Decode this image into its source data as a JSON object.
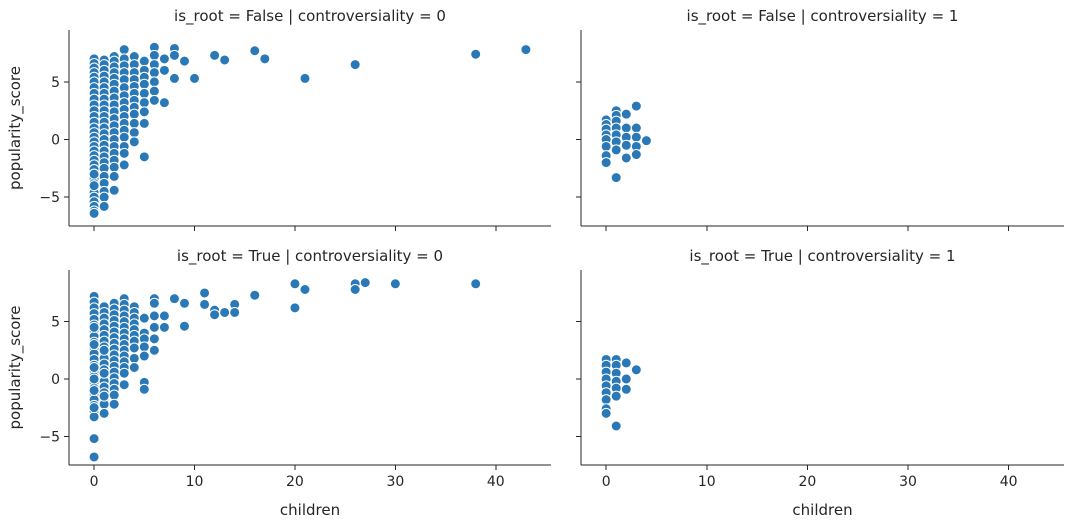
{
  "colors": {
    "point": "#2a78b5",
    "axis": "#262626"
  },
  "chart_data": [
    {
      "type": "scatter",
      "title": "is_root = False | controversiality = 0",
      "xlabel": "",
      "ylabel": "popularity_score",
      "xlim": [
        -2.5,
        45.5
      ],
      "ylim": [
        -7.5,
        9.5
      ],
      "xticks": [
        0,
        10,
        20,
        30,
        40
      ],
      "yticks": [
        -5,
        0,
        5
      ],
      "x": [
        0,
        0,
        0,
        0,
        0,
        0,
        0,
        0,
        0,
        0,
        0,
        0,
        0,
        0,
        0,
        0,
        0,
        0,
        0,
        0,
        0,
        0,
        0,
        0,
        0,
        0,
        0,
        0,
        0,
        0,
        0,
        0,
        0,
        0,
        0,
        1,
        1,
        1,
        1,
        1,
        1,
        1,
        1,
        1,
        1,
        1,
        1,
        1,
        1,
        1,
        1,
        1,
        1,
        1,
        1,
        1,
        1,
        1,
        1,
        1,
        2,
        2,
        2,
        2,
        2,
        2,
        2,
        2,
        2,
        2,
        2,
        2,
        2,
        2,
        2,
        2,
        2,
        2,
        2,
        2,
        3,
        3,
        3,
        3,
        3,
        3,
        3,
        3,
        3,
        3,
        3,
        3,
        3,
        3,
        3,
        3,
        4,
        4,
        4,
        4,
        4,
        4,
        4,
        4,
        4,
        4,
        4,
        4,
        5,
        5,
        5,
        5,
        5,
        5,
        5,
        5,
        5,
        6,
        6,
        6,
        6,
        6,
        6,
        6,
        7,
        7,
        7,
        8,
        8,
        8,
        9,
        10,
        12,
        13,
        16,
        17,
        21,
        26,
        38,
        43
      ],
      "y": [
        7.0,
        6.6,
        6.2,
        5.8,
        5.4,
        5.0,
        4.5,
        4.0,
        3.5,
        3.0,
        2.5,
        2.0,
        1.5,
        1.0,
        0.6,
        0.2,
        -0.2,
        -0.6,
        -1.0,
        -1.4,
        -1.8,
        -2.2,
        -2.6,
        -3.0,
        -3.4,
        -3.8,
        -4.2,
        -4.6,
        -5.0,
        -5.4,
        -5.8,
        -6.2,
        -6.4,
        -4.0,
        -3.0,
        6.9,
        6.5,
        6.0,
        5.5,
        5.0,
        4.5,
        4.0,
        3.5,
        3.0,
        2.5,
        2.0,
        1.5,
        1.0,
        0.5,
        0.0,
        -0.5,
        -1.0,
        -1.5,
        -2.0,
        -2.5,
        -3.2,
        -3.8,
        -4.5,
        -5.0,
        -5.8,
        7.2,
        6.8,
        6.3,
        5.8,
        5.3,
        4.8,
        4.2,
        3.6,
        3.0,
        2.4,
        1.8,
        1.2,
        0.6,
        0.0,
        -0.6,
        -1.2,
        -1.8,
        -2.4,
        -3.2,
        -4.4,
        7.8,
        7.0,
        6.4,
        5.8,
        5.2,
        4.5,
        3.8,
        3.2,
        2.6,
        2.0,
        1.4,
        0.8,
        0.2,
        -0.6,
        -1.2,
        -2.2,
        7.2,
        6.5,
        5.8,
        5.2,
        4.6,
        4.0,
        3.4,
        2.8,
        2.2,
        1.4,
        0.6,
        -0.2,
        6.8,
        6.0,
        5.4,
        4.8,
        4.0,
        3.2,
        2.4,
        1.4,
        -1.5,
        8.0,
        7.3,
        6.5,
        5.8,
        5.0,
        4.2,
        3.4,
        7.0,
        6.0,
        3.2,
        7.9,
        7.3,
        5.3,
        6.8,
        5.3,
        7.3,
        6.9,
        7.7,
        7.0,
        5.3,
        6.5,
        7.4,
        7.8
      ]
    },
    {
      "type": "scatter",
      "title": "is_root = False | controversiality = 1",
      "xlabel": "",
      "ylabel": "",
      "xlim": [
        -2.5,
        45.5
      ],
      "ylim": [
        -7.5,
        9.5
      ],
      "xticks": [
        0,
        10,
        20,
        30,
        40
      ],
      "yticks": [
        -5,
        0,
        5
      ],
      "x": [
        0,
        0,
        0,
        0,
        0,
        0,
        0,
        0,
        1,
        1,
        1,
        1,
        1,
        1,
        1,
        1,
        2,
        2,
        2,
        2,
        2,
        3,
        3,
        3,
        3,
        3,
        4
      ],
      "y": [
        1.7,
        1.3,
        0.9,
        0.4,
        0.0,
        -0.6,
        -1.4,
        -2.0,
        2.5,
        2.1,
        1.6,
        1.0,
        0.4,
        -0.2,
        -0.9,
        -3.3,
        2.2,
        1.0,
        0.2,
        -0.5,
        -1.6,
        2.9,
        1.0,
        0.2,
        -0.6,
        -1.3,
        -0.1
      ]
    },
    {
      "type": "scatter",
      "title": "is_root = True | controversiality = 0",
      "xlabel": "children",
      "ylabel": "popularity_score",
      "xlim": [
        -2.5,
        45.5
      ],
      "ylim": [
        -7.5,
        9.5
      ],
      "xticks": [
        0,
        10,
        20,
        30,
        40
      ],
      "yticks": [
        -5,
        0,
        5
      ],
      "x": [
        0,
        0,
        0,
        0,
        0,
        0,
        0,
        0,
        0,
        0,
        0,
        0,
        0,
        0,
        0,
        0,
        0,
        0,
        0,
        0,
        0,
        0,
        0,
        0,
        0,
        0,
        0,
        0,
        0,
        0,
        1,
        1,
        1,
        1,
        1,
        1,
        1,
        1,
        1,
        1,
        1,
        1,
        1,
        1,
        1,
        1,
        1,
        1,
        1,
        1,
        1,
        1,
        2,
        2,
        2,
        2,
        2,
        2,
        2,
        2,
        2,
        2,
        2,
        2,
        2,
        2,
        2,
        2,
        2,
        2,
        3,
        3,
        3,
        3,
        3,
        3,
        3,
        3,
        3,
        3,
        3,
        3,
        3,
        3,
        3,
        4,
        4,
        4,
        4,
        4,
        4,
        4,
        4,
        4,
        4,
        5,
        5,
        5,
        5,
        5,
        5,
        5,
        6,
        6,
        6,
        6,
        6,
        6,
        7,
        7,
        8,
        9,
        9,
        11,
        11,
        12,
        12,
        13,
        14,
        14,
        16,
        20,
        20,
        21,
        26,
        26,
        27,
        30,
        38
      ],
      "y": [
        7.2,
        6.7,
        6.2,
        5.7,
        5.2,
        4.7,
        4.2,
        3.7,
        3.2,
        2.7,
        2.2,
        1.7,
        1.2,
        0.7,
        0.2,
        -0.3,
        -0.8,
        -1.3,
        -1.8,
        -2.3,
        -2.8,
        -3.3,
        4.5,
        3.0,
        1.0,
        0.0,
        -1.0,
        -2.5,
        -5.2,
        -6.8,
        6.3,
        5.8,
        5.3,
        4.8,
        4.3,
        3.8,
        3.3,
        2.8,
        2.3,
        1.8,
        1.3,
        0.8,
        0.3,
        -0.2,
        -0.7,
        -1.2,
        -1.7,
        -2.2,
        -3.0,
        2.5,
        0.5,
        -1.5,
        6.6,
        6.1,
        5.6,
        5.1,
        4.6,
        4.1,
        3.6,
        3.1,
        2.6,
        2.1,
        1.6,
        1.1,
        0.6,
        0.1,
        -0.4,
        -0.9,
        -1.4,
        -2.2,
        7.0,
        6.5,
        6.0,
        5.5,
        5.0,
        4.5,
        4.0,
        3.5,
        3.0,
        2.5,
        2.0,
        1.5,
        1.0,
        0.5,
        -0.5,
        6.3,
        5.8,
        5.3,
        4.8,
        4.3,
        3.8,
        3.3,
        2.7,
        1.8,
        1.0,
        5.3,
        4.0,
        3.5,
        2.8,
        2.0,
        -0.3,
        -0.9,
        7.0,
        6.6,
        5.5,
        4.5,
        3.5,
        2.5,
        5.5,
        4.5,
        7.0,
        6.6,
        4.6,
        7.5,
        6.5,
        6.0,
        5.6,
        5.8,
        6.5,
        5.8,
        7.3,
        8.3,
        6.2,
        7.8,
        8.3,
        7.8,
        8.4,
        8.3,
        8.3
      ]
    },
    {
      "type": "scatter",
      "title": "is_root = True | controversiality = 1",
      "xlabel": "children",
      "ylabel": "",
      "xlim": [
        -2.5,
        45.5
      ],
      "ylim": [
        -7.5,
        9.5
      ],
      "xticks": [
        0,
        10,
        20,
        30,
        40
      ],
      "yticks": [
        -5,
        0,
        5
      ],
      "x": [
        0,
        0,
        0,
        0,
        0,
        0,
        0,
        0,
        0,
        1,
        1,
        1,
        1,
        1,
        1,
        1,
        2,
        2,
        2,
        3
      ],
      "y": [
        1.7,
        1.2,
        0.6,
        0.0,
        -0.6,
        -1.2,
        -1.8,
        -2.6,
        -3.0,
        1.7,
        1.2,
        0.5,
        -0.2,
        -0.8,
        -1.5,
        -4.1,
        1.4,
        0.0,
        -0.9,
        0.8
      ]
    }
  ]
}
